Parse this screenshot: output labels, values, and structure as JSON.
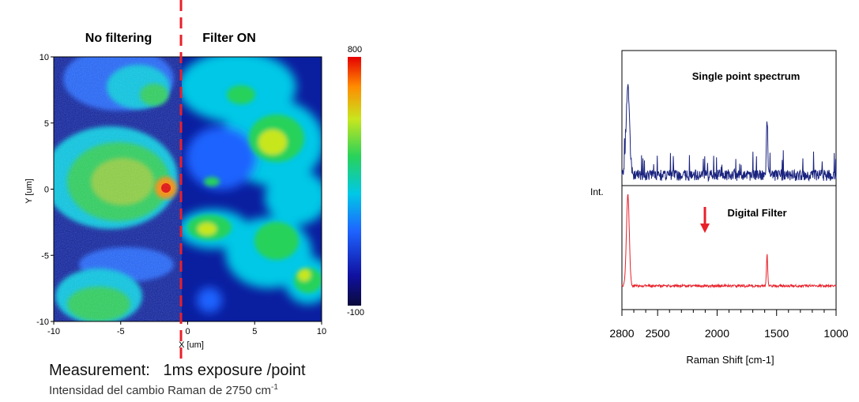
{
  "chart_data": [
    {
      "type": "heatmap",
      "panel_labels": [
        "No filtering",
        "Filter ON"
      ],
      "xlabel": "X [um]",
      "ylabel": "Y [um]",
      "xlim": [
        -10,
        10
      ],
      "ylim": [
        -10,
        10
      ],
      "xticks": [
        "-10",
        "-5",
        "0",
        "5",
        "10"
      ],
      "yticks": [
        "10",
        "5",
        "0",
        "-5",
        "-10"
      ],
      "colorbar": {
        "min": -100,
        "max": 800,
        "min_label": "-100",
        "max_label": "800"
      },
      "split_x": -0.5,
      "colors": {
        "background": "#0a1ea0",
        "split_line": "#e8202a"
      }
    },
    {
      "type": "line",
      "annotation_top": "Single point spectrum",
      "annotation_arrow": "Digital Filter",
      "ylabel": "Int.",
      "xlabel": "Raman Shift [cm-1]",
      "xlim": [
        2800,
        1000
      ],
      "xticks": [
        "2800",
        "2500",
        "2000",
        "1500",
        "1000"
      ],
      "xtick_values": [
        2800,
        2500,
        2000,
        1500,
        1000
      ],
      "peaks": [
        2750,
        1580
      ],
      "series": [
        {
          "color": "#1a237e"
        },
        {
          "color": "#e8202a"
        }
      ]
    }
  ],
  "captions": {
    "measurement": "Measurement:   1ms exposure /point",
    "subtitle": "Intensidad del cambio Raman de 2750 cm",
    "subtitle_sup": "-1"
  }
}
